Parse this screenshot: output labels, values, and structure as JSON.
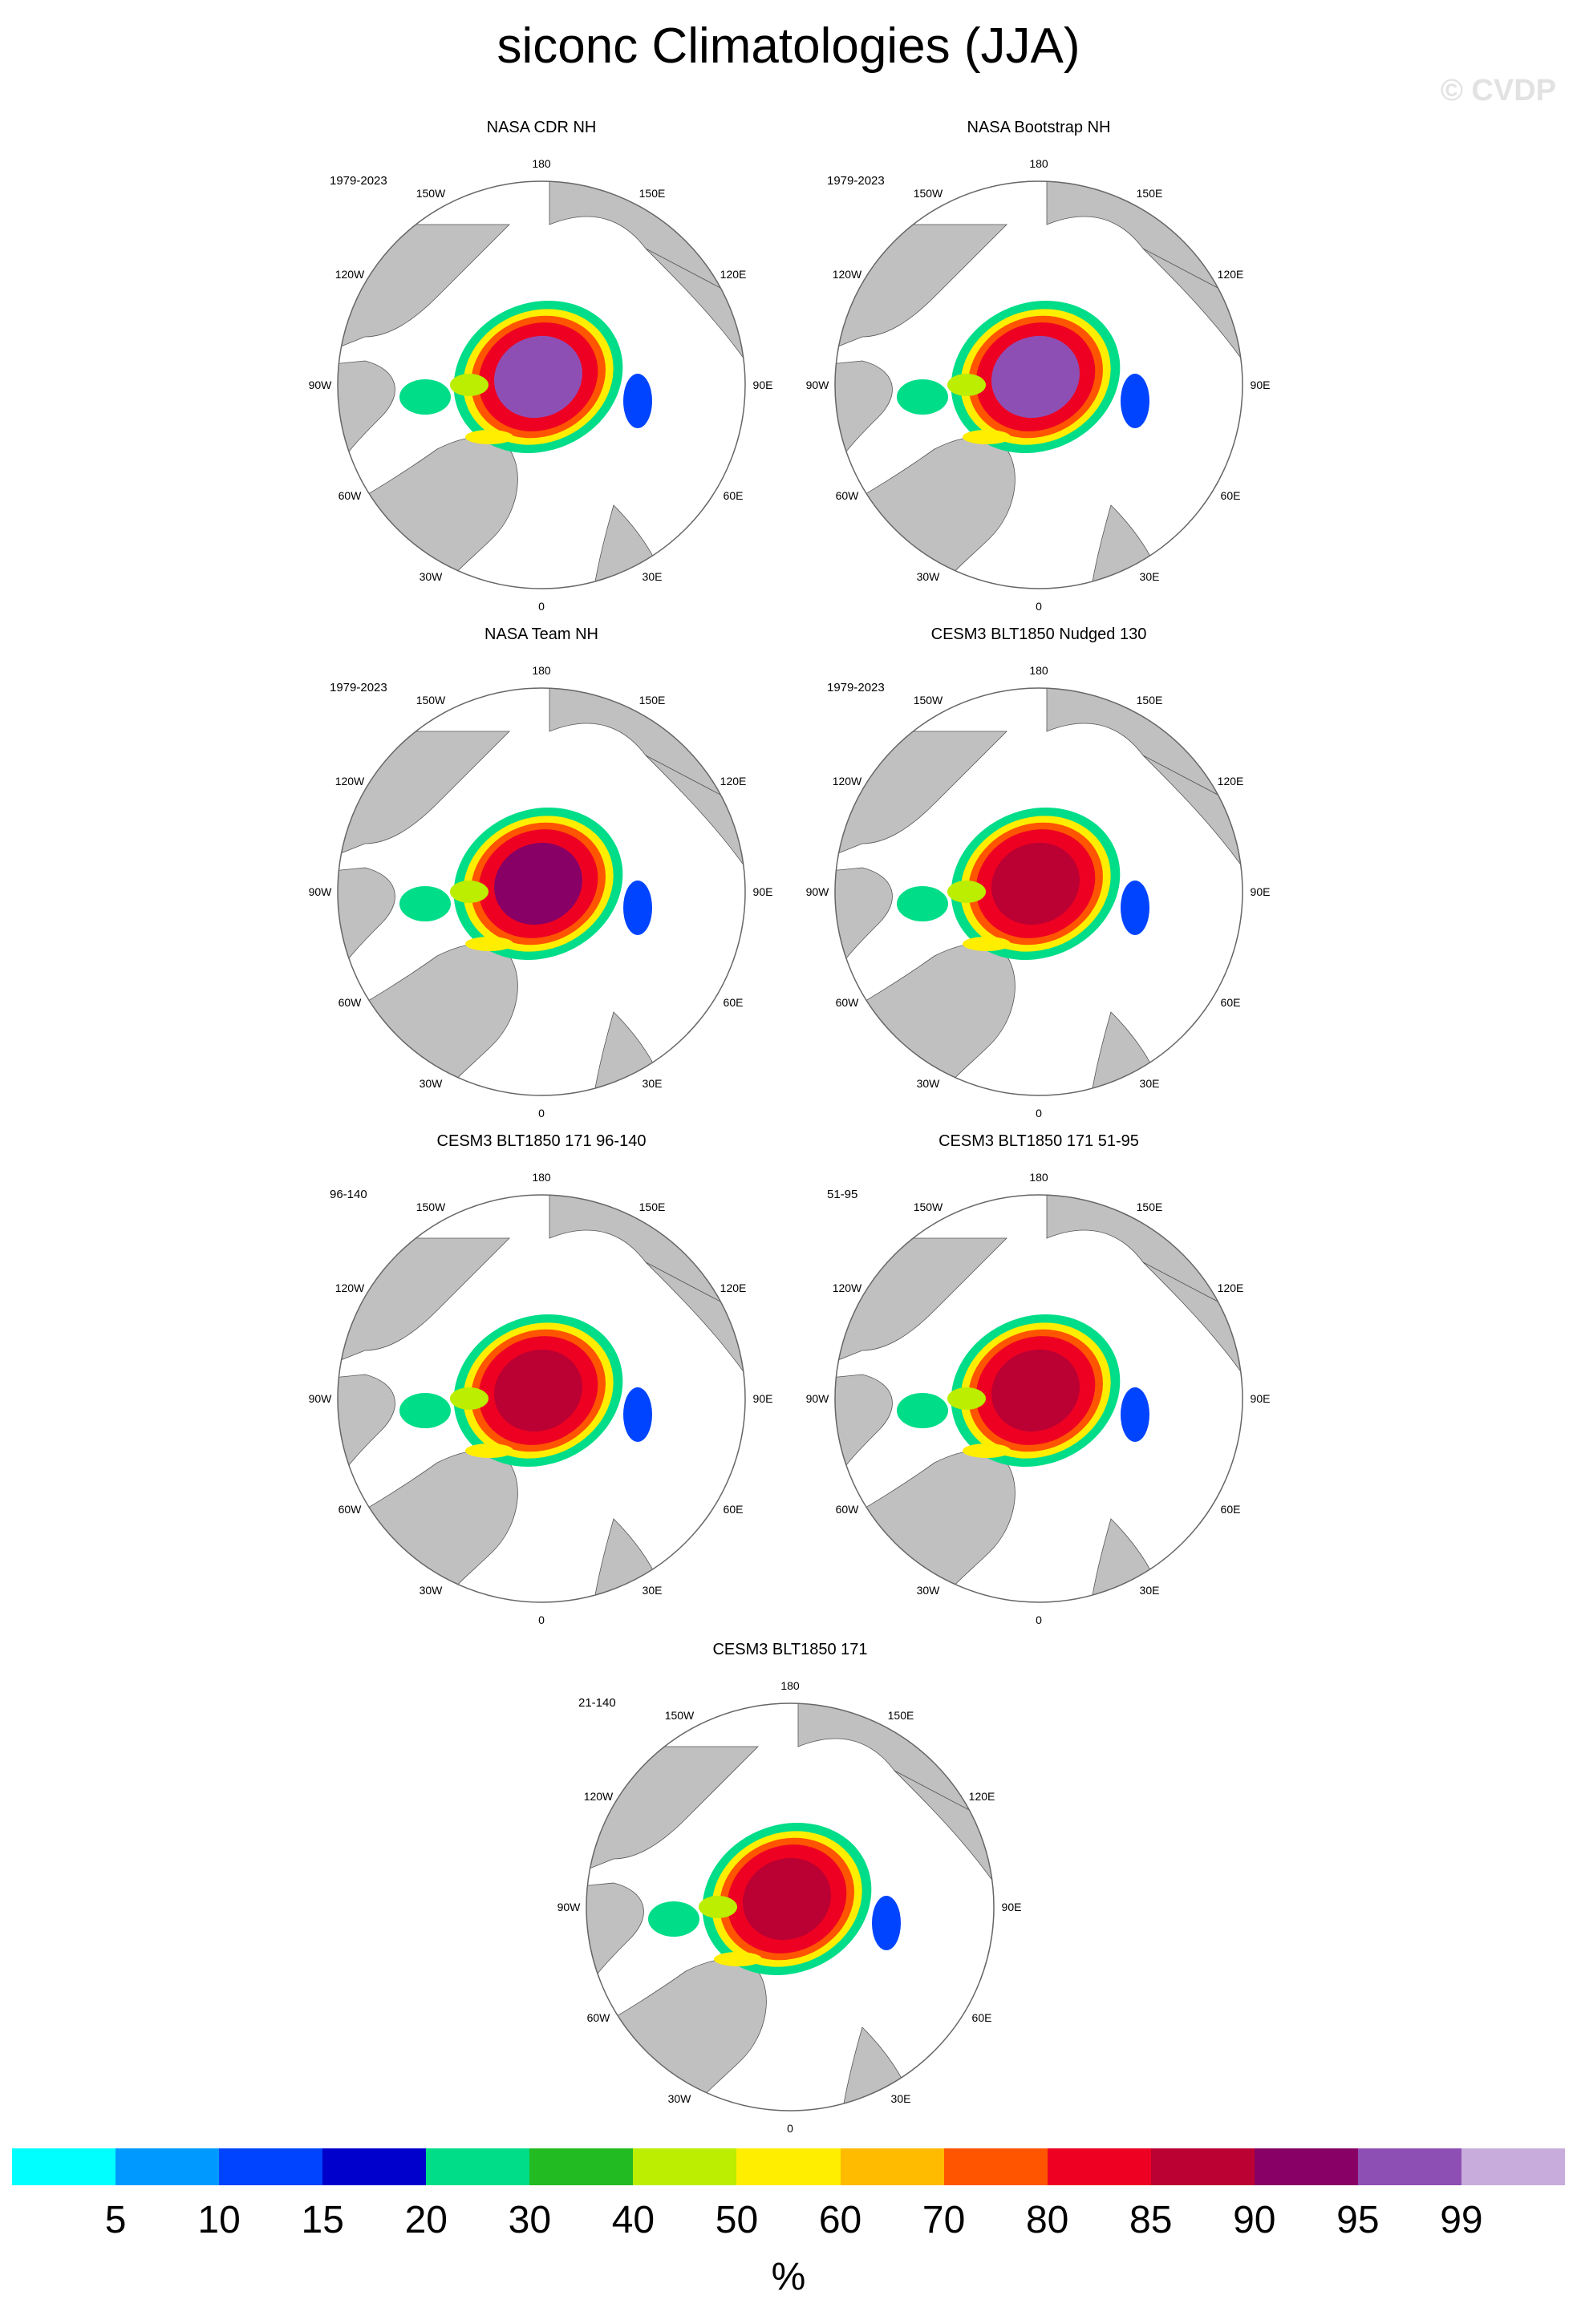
{
  "title": "siconc Climatologies (JJA)",
  "watermark": "© CVDP",
  "map": {
    "projection": "north-polar-stereographic",
    "land_color": "#c0c0c0",
    "ocean_color": "#ffffff",
    "lon_labels": [
      "180",
      "150E",
      "120E",
      "90E",
      "60E",
      "30E",
      "0",
      "30W",
      "60W",
      "90W",
      "120W",
      "150W"
    ]
  },
  "panels": [
    {
      "title": "NASA CDR NH",
      "period": "1979-2023",
      "max_class": "purple"
    },
    {
      "title": "NASA Bootstrap NH",
      "period": "1979-2023",
      "max_class": "purple"
    },
    {
      "title": "NASA Team NH",
      "period": "1979-2023",
      "max_class": "darkpurple"
    },
    {
      "title": "CESM3 BLT1850 Nudged 130",
      "period": "1979-2023",
      "max_class": "crimson"
    },
    {
      "title": "CESM3 BLT1850 171 96-140",
      "period": "96-140",
      "max_class": "crimson"
    },
    {
      "title": "CESM3 BLT1850 171 51-95",
      "period": "51-95",
      "max_class": "crimson"
    },
    {
      "title": "CESM3 BLT1850 171",
      "period": "21-140",
      "max_class": "crimson"
    }
  ],
  "colorbar": {
    "colors": [
      "#00ffff",
      "#0099ff",
      "#0044ff",
      "#0000cc",
      "#00dd88",
      "#22bb22",
      "#bbee00",
      "#ffee00",
      "#ffbb00",
      "#ff5500",
      "#ee0022",
      "#bb0033",
      "#880066",
      "#8e4fb5",
      "#c8addc"
    ],
    "labels": [
      "5",
      "10",
      "15",
      "20",
      "30",
      "40",
      "50",
      "60",
      "70",
      "80",
      "85",
      "90",
      "95",
      "99"
    ],
    "units": "%"
  }
}
